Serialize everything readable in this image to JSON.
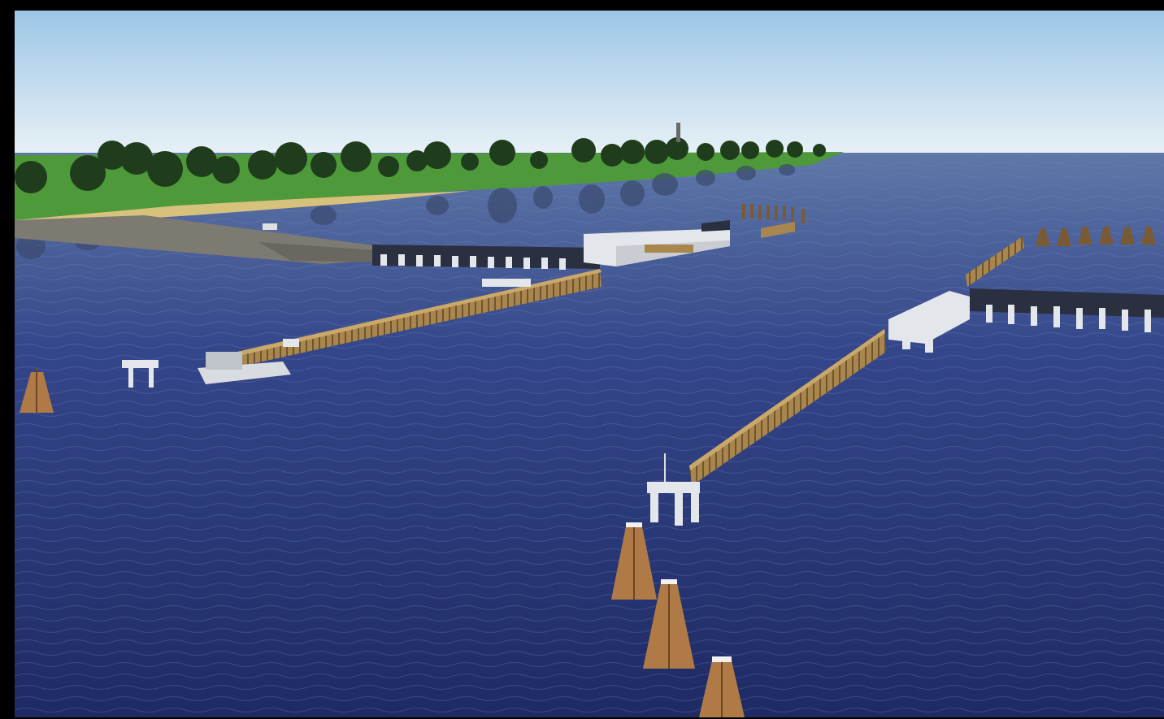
{
  "scene": {
    "colors": {
      "frame": "#000000",
      "sky_top": "#9cc6e6",
      "sky_bottom": "#e8f1f6",
      "grass": "#4e9a3a",
      "water_far": "#5f78a8",
      "water_near": "#1e2a63",
      "timber": "#a9864e",
      "concrete": "#e3e6ea",
      "gate_dark": "#2a3040"
    },
    "icons": [
      "tree-icon",
      "water-tower-icon",
      "boat-icon",
      "dolphin-piling-icon"
    ]
  }
}
